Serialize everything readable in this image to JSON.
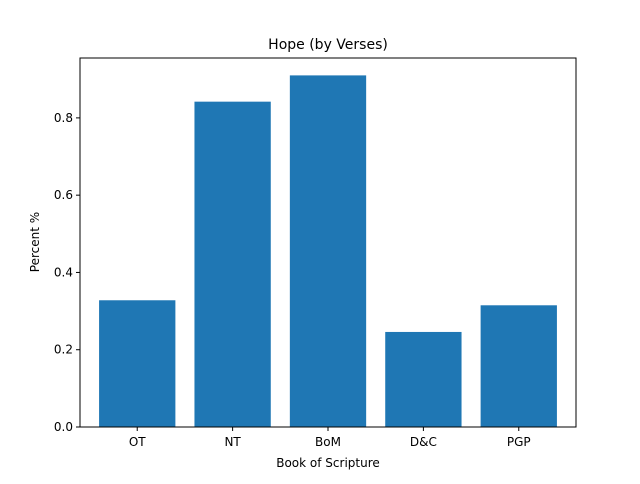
{
  "chart_data": {
    "type": "bar",
    "title": "Hope (by Verses)",
    "xlabel": "Book of Scripture",
    "ylabel": "Percent %",
    "categories": [
      "OT",
      "NT",
      "BoM",
      "D&C",
      "PGP"
    ],
    "values": [
      0.328,
      0.842,
      0.91,
      0.246,
      0.315
    ],
    "ylim": [
      0,
      0.955
    ],
    "yticks": [
      0.0,
      0.2,
      0.4,
      0.6,
      0.8
    ],
    "ytick_labels": [
      "0.0",
      "0.2",
      "0.4",
      "0.6",
      "0.8"
    ],
    "bar_color": "#1f77b4",
    "grid": false,
    "legend": false
  }
}
